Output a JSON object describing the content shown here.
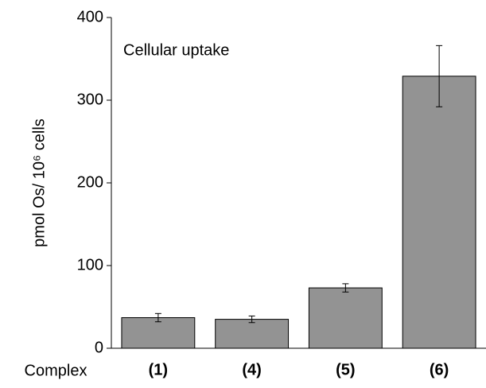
{
  "chart_data": {
    "type": "bar",
    "annotation": "Cellular uptake",
    "y_label": "pmol Os/ 10⁶ cells",
    "x_label": "Complex",
    "categories": [
      "(1)",
      "(4)",
      "(5)",
      "(6)"
    ],
    "values": [
      37,
      35,
      73,
      329
    ],
    "errors": [
      5,
      4,
      5,
      37
    ],
    "color": "#939393",
    "ylim": [
      0,
      400
    ],
    "yticks": [
      0,
      100,
      200,
      300,
      400
    ]
  }
}
